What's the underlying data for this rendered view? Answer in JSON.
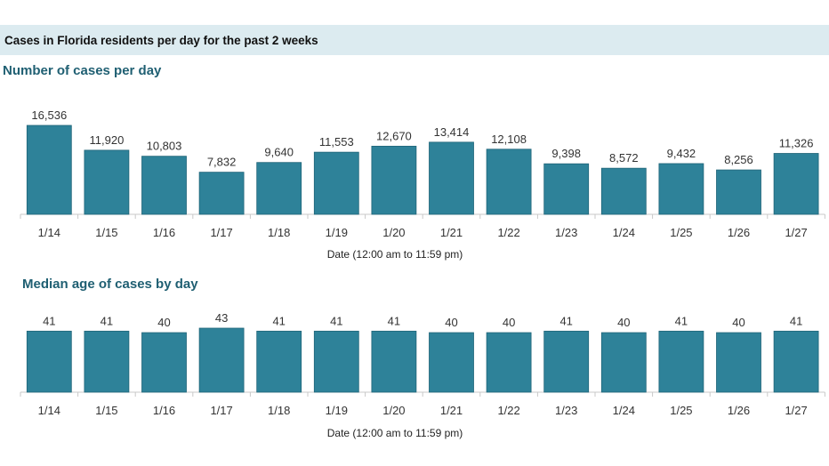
{
  "banner": {
    "title": "Cases in Florida residents per day for the past 2 weeks"
  },
  "chart_data": [
    {
      "type": "bar",
      "title": "Number of cases per day",
      "xlabel": "Date (12:00 am to 11:59 pm)",
      "ylabel": "",
      "categories": [
        "1/14",
        "1/15",
        "1/16",
        "1/17",
        "1/18",
        "1/19",
        "1/20",
        "1/21",
        "1/22",
        "1/23",
        "1/24",
        "1/25",
        "1/26",
        "1/27"
      ],
      "values": [
        16536,
        11920,
        10803,
        7832,
        9640,
        11553,
        12670,
        13414,
        12108,
        9398,
        8572,
        9432,
        8256,
        11326
      ],
      "value_labels": [
        "16,536",
        "11,920",
        "10,803",
        "7,832",
        "9,640",
        "11,553",
        "12,670",
        "13,414",
        "12,108",
        "9,398",
        "8,572",
        "9,432",
        "8,256",
        "11,326"
      ],
      "ylim": [
        0,
        16536
      ],
      "grid": false,
      "color": "#2e8299"
    },
    {
      "type": "bar",
      "title": "Median age of cases by day",
      "xlabel": "Date (12:00 am to 11:59 pm)",
      "ylabel": "",
      "categories": [
        "1/14",
        "1/15",
        "1/16",
        "1/17",
        "1/18",
        "1/19",
        "1/20",
        "1/21",
        "1/22",
        "1/23",
        "1/24",
        "1/25",
        "1/26",
        "1/27"
      ],
      "values": [
        41,
        41,
        40,
        43,
        41,
        41,
        41,
        40,
        40,
        41,
        40,
        41,
        40,
        41
      ],
      "value_labels": [
        "41",
        "41",
        "40",
        "43",
        "41",
        "41",
        "41",
        "40",
        "40",
        "41",
        "40",
        "41",
        "40",
        "41"
      ],
      "ylim": [
        0,
        43
      ],
      "grid": false,
      "color": "#2e8299"
    }
  ]
}
